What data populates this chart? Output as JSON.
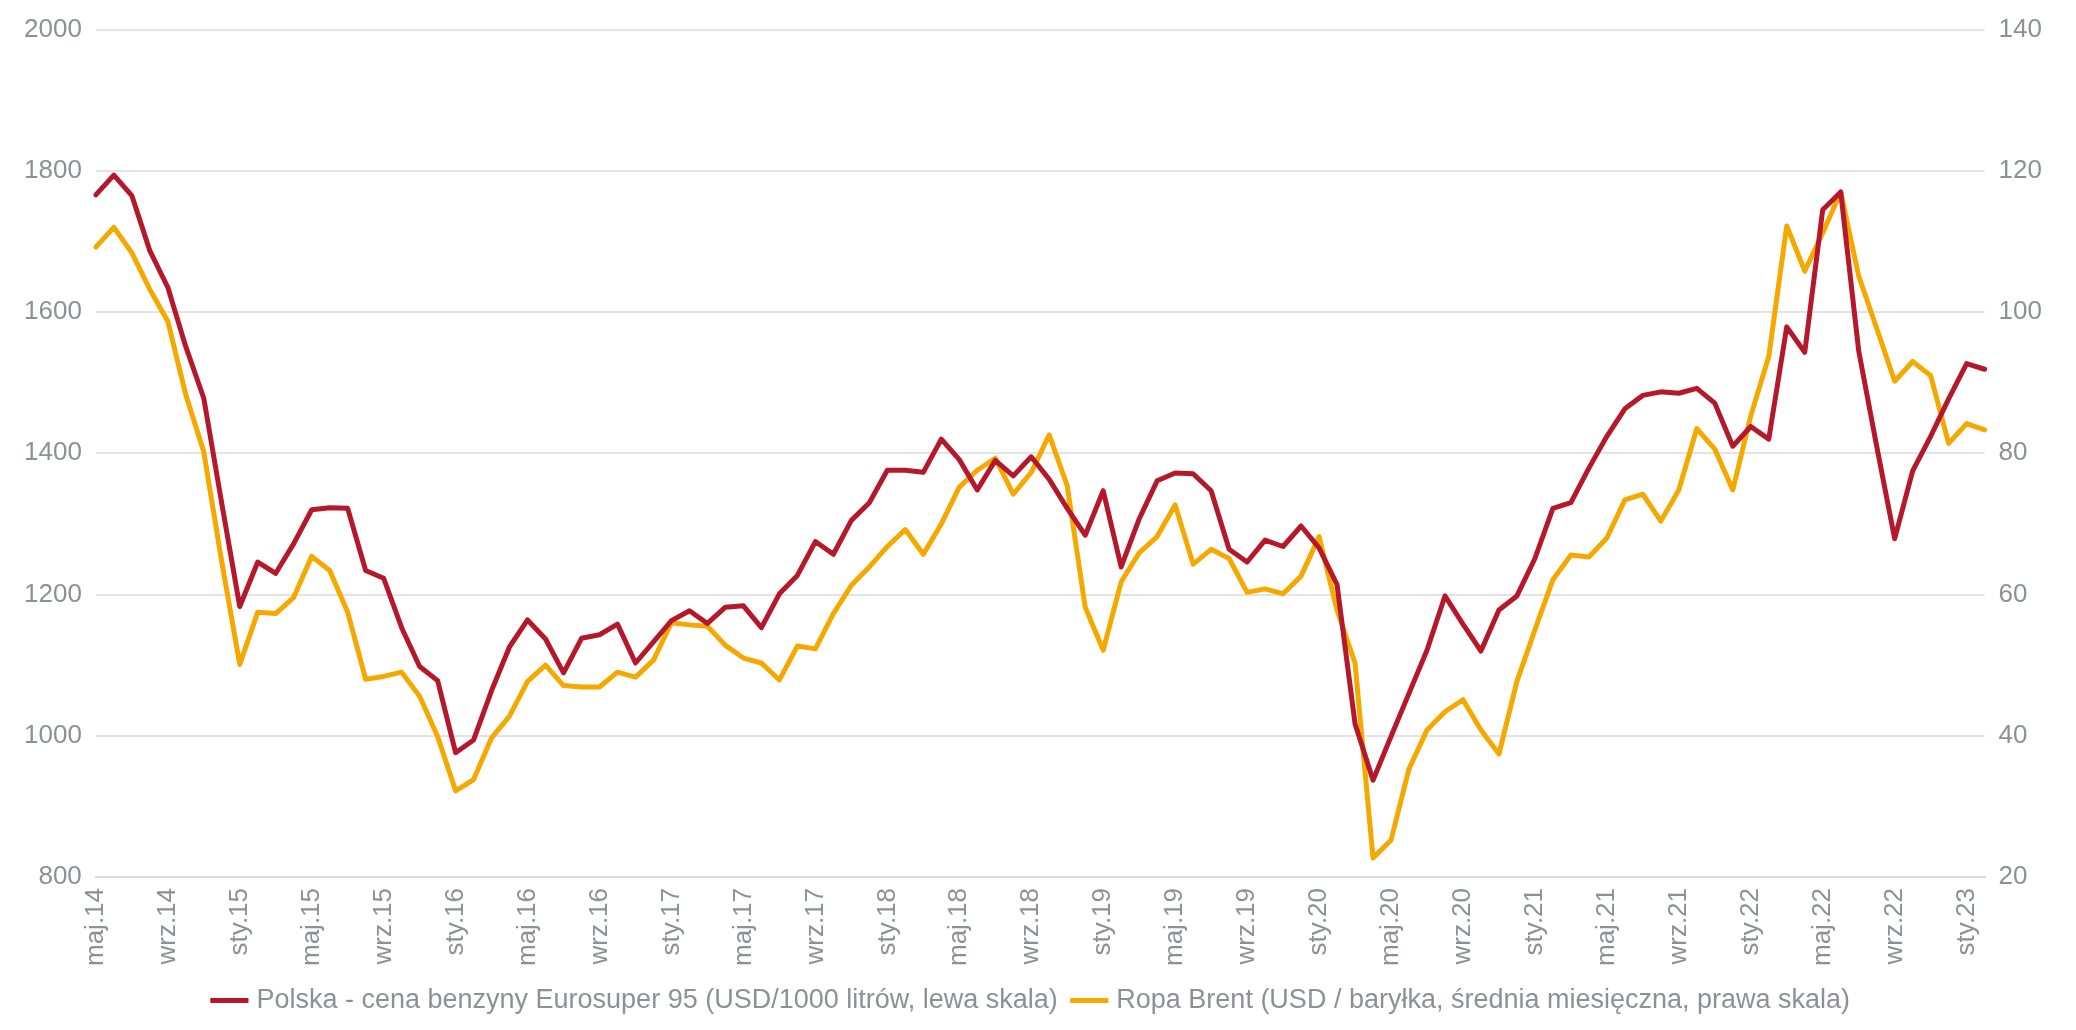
{
  "chart_data": {
    "type": "line",
    "categories": [
      "maj.14",
      null,
      null,
      null,
      "wrz.14",
      null,
      null,
      null,
      "sty.15",
      null,
      null,
      null,
      "maj.15",
      null,
      null,
      null,
      "wrz.15",
      null,
      null,
      null,
      "sty.16",
      null,
      null,
      null,
      "maj.16",
      null,
      null,
      null,
      "wrz.16",
      null,
      null,
      null,
      "sty.17",
      null,
      null,
      null,
      "maj.17",
      null,
      null,
      null,
      "wrz.17",
      null,
      null,
      null,
      "sty.18",
      null,
      null,
      null,
      "maj.18",
      null,
      null,
      null,
      "wrz.18",
      null,
      null,
      null,
      "sty.19",
      null,
      null,
      null,
      "maj.19",
      null,
      null,
      null,
      "wrz.19",
      null,
      null,
      null,
      "sty.20",
      null,
      null,
      null,
      "maj.20",
      null,
      null,
      null,
      "wrz.20",
      null,
      null,
      null,
      "sty.21",
      null,
      null,
      null,
      "maj.21",
      null,
      null,
      null,
      "wrz.21",
      null,
      null,
      null,
      "sty.22",
      null,
      null,
      null,
      "maj.22",
      null,
      null,
      null,
      "wrz.22",
      null,
      null,
      null,
      "sty.23",
      null
    ],
    "series": [
      {
        "name": "Polska - cena benzyny Eurosuper 95 (USD/1000 litrów, lewa skala)",
        "color": "#b5182b",
        "values": [
          1766,
          1794,
          1765,
          1687,
          1635,
          1551,
          1478,
          1329,
          1183,
          1246,
          1230,
          1272,
          1320,
          1323,
          1322,
          1234,
          1223,
          1153,
          1098,
          1078,
          976,
          994,
          1064,
          1126,
          1164,
          1137,
          1089,
          1138,
          1143,
          1158,
          1103,
          1133,
          1163,
          1177,
          1159,
          1182,
          1184,
          1153,
          1201,
          1227,
          1275,
          1257,
          1305,
          1330,
          1376,
          1376,
          1373,
          1420,
          1391,
          1348,
          1390,
          1368,
          1395,
          1363,
          1322,
          1284,
          1347,
          1239,
          1307,
          1361,
          1372,
          1371,
          1347,
          1264,
          1246,
          1277,
          1268,
          1297,
          1266,
          1214,
          1017,
          937,
          999,
          1060,
          1121,
          1198,
          1158,
          1120,
          1178,
          1198,
          1251,
          1322,
          1330,
          1379,
          1424,
          1463,
          1482,
          1487,
          1485,
          1492,
          1471,
          1410,
          1438,
          1420,
          1579,
          1543,
          1745,
          1770,
          1545,
          1410,
          1279,
          1375,
          1424,
          1477,
          1527,
          1519
        ]
      },
      {
        "name": "Ropa Brent (USD / baryłka, średnia miesięczna, prawa skala)",
        "color": "#f5a800",
        "axis": "y2",
        "values": [
          109.2,
          112.0,
          108.4,
          103.2,
          98.7,
          88.3,
          80.2,
          64.6,
          50.1,
          57.5,
          57.3,
          59.6,
          65.4,
          63.4,
          57.5,
          48.0,
          48.4,
          49.0,
          45.6,
          39.9,
          32.2,
          33.8,
          39.7,
          42.8,
          47.7,
          50.0,
          47.1,
          46.9,
          46.9,
          49.0,
          48.3,
          50.7,
          56.0,
          55.7,
          55.5,
          52.8,
          51.0,
          50.3,
          47.9,
          52.7,
          52.3,
          57.3,
          61.3,
          63.9,
          66.8,
          69.2,
          65.7,
          70.0,
          75.2,
          77.6,
          79.3,
          74.2,
          77.3,
          82.6,
          75.4,
          58.2,
          52.1,
          61.8,
          65.9,
          68.2,
          72.7,
          64.3,
          66.4,
          65.1,
          60.3,
          60.8,
          60.1,
          62.6,
          68.2,
          57.8,
          50.3,
          22.7,
          25.2,
          35.3,
          40.8,
          43.4,
          45.1,
          40.8,
          37.4,
          47.7,
          55.0,
          62.1,
          65.6,
          65.3,
          68.0,
          73.4,
          74.2,
          70.4,
          74.8,
          83.5,
          80.6,
          74.8,
          85.3,
          93.7,
          112.2,
          105.8,
          111.2,
          117.0,
          105.1,
          97.7,
          90.2,
          93.0,
          91.0,
          81.4,
          84.2,
          83.3
        ]
      }
    ],
    "ylim": [
      800,
      2000
    ],
    "yticks": [
      800,
      1000,
      1200,
      1400,
      1600,
      1800,
      2000
    ],
    "y2lim": [
      20,
      140
    ],
    "y2ticks": [
      20,
      40,
      60,
      80,
      100,
      120,
      140
    ],
    "grid": "y",
    "legend": "bottom",
    "marker": "none",
    "line_style": "solid"
  }
}
